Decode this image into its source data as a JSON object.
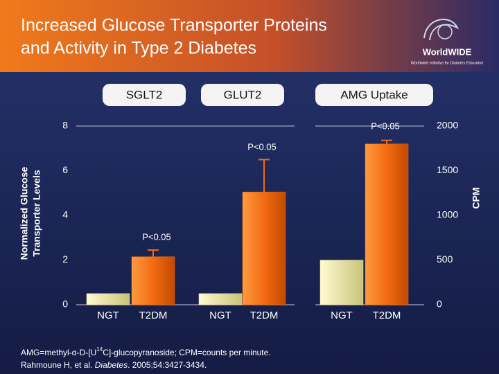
{
  "chart_data": {
    "type": "bar",
    "title_lines": [
      "Increased Glucose Transporter Proteins",
      "and Activity in Type 2 Diabetes"
    ],
    "logo": {
      "name": "WorldWIDE",
      "tagline": "Worldwide Initiative for Diabetes Education"
    },
    "ylabel_lines": [
      "Normalized Glucose",
      "Transporter Levels"
    ],
    "y2label": "CPM",
    "ylim": [
      0,
      8
    ],
    "yticks": [
      0,
      2,
      4,
      6,
      8
    ],
    "y2lim": [
      0,
      2000
    ],
    "y2ticks": [
      0,
      500,
      1000,
      1500,
      2000
    ],
    "colors": [
      "#e4e0a0",
      "#f26b12"
    ],
    "panels": [
      {
        "name": "SGLT2",
        "categories": [
          "NGT",
          "T2DM"
        ],
        "values": [
          0.5,
          2.15
        ],
        "errors": [
          null,
          0.3
        ],
        "annotation": "P<0.05",
        "axis": "y"
      },
      {
        "name": "GLUT2",
        "categories": [
          "NGT",
          "T2DM"
        ],
        "values": [
          0.5,
          5.05
        ],
        "errors": [
          null,
          1.45
        ],
        "annotation": "P<0.05",
        "axis": "y"
      },
      {
        "name": "AMG Uptake",
        "categories": [
          "NGT",
          "T2DM"
        ],
        "values": [
          500,
          1800
        ],
        "errors": [
          null,
          40
        ],
        "annotation": "P<0.05",
        "axis": "y2"
      }
    ],
    "footnote": {
      "line1": [
        "AMG=methyl-α-D-[U",
        "14",
        "C]-glucopyranoside; CPM=counts per minute."
      ],
      "line2": [
        "Rahmoune H, et al. ",
        "Diabetes",
        ". 2005;54:3427-3434."
      ]
    }
  }
}
